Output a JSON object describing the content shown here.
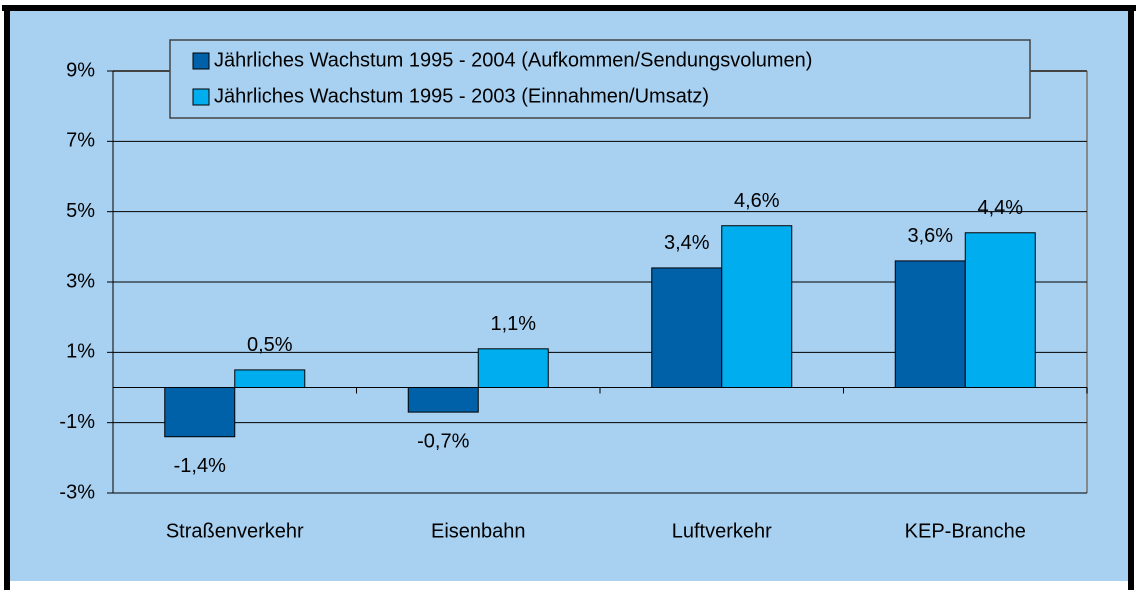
{
  "chart_data": {
    "type": "bar",
    "categories": [
      "Straßenverkehr",
      "Eisenbahn",
      "Luftverkehr",
      "KEP-Branche"
    ],
    "series": [
      {
        "name": "Jährliches Wachstum 1995 - 2004 (Aufkommen/Sendungsvolumen)",
        "color": "#0060a8",
        "values": [
          -1.4,
          -0.7,
          3.4,
          3.6
        ],
        "value_labels": [
          "-1,4%",
          "-0,7%",
          "3,4%",
          "3,6%"
        ]
      },
      {
        "name": "Jährliches Wachstum 1995 - 2003 (Einnahmen/Umsatz)",
        "color": "#00aeef",
        "values": [
          0.5,
          1.1,
          4.6,
          4.4
        ],
        "value_labels": [
          "0,5%",
          "1,1%",
          "4,6%",
          "4,4%"
        ]
      }
    ],
    "ylim": [
      -3,
      9
    ],
    "yticks": [
      {
        "value": -3,
        "label": "-3%"
      },
      {
        "value": -1,
        "label": "-1%"
      },
      {
        "value": 1,
        "label": "1%"
      },
      {
        "value": 3,
        "label": "3%"
      },
      {
        "value": 5,
        "label": "5%"
      },
      {
        "value": 7,
        "label": "7%"
      },
      {
        "value": 9,
        "label": "9%"
      }
    ],
    "grid": true,
    "legend": "top"
  }
}
